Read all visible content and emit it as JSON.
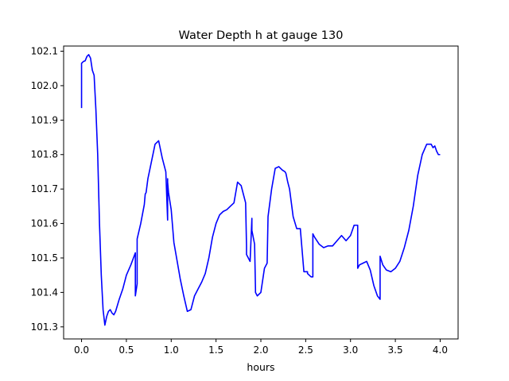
{
  "chart_data": {
    "type": "line",
    "title": "Water Depth h at gauge 130",
    "xlabel": "hours",
    "ylabel": "",
    "xlim": [
      -0.2,
      4.2
    ],
    "ylim": [
      101.265,
      102.115
    ],
    "x_ticks": [
      0.0,
      0.5,
      1.0,
      1.5,
      2.0,
      2.5,
      3.0,
      3.5,
      4.0
    ],
    "x_tick_labels": [
      "0.0",
      "0.5",
      "1.0",
      "1.5",
      "2.0",
      "2.5",
      "3.0",
      "3.5",
      "4.0"
    ],
    "y_ticks": [
      101.3,
      101.4,
      101.5,
      101.6,
      101.7,
      101.8,
      101.9,
      102.0,
      102.1
    ],
    "y_tick_labels": [
      "101.3",
      "101.4",
      "101.5",
      "101.6",
      "101.7",
      "101.8",
      "101.9",
      "102.0",
      "102.1"
    ],
    "grid": false,
    "series": [
      {
        "color": "#0000ff",
        "x": [
          0.0,
          0.0,
          0.02,
          0.04,
          0.06,
          0.08,
          0.1,
          0.12,
          0.14,
          0.16,
          0.18,
          0.2,
          0.22,
          0.24,
          0.26,
          0.28,
          0.3,
          0.32,
          0.34,
          0.36,
          0.38,
          0.42,
          0.46,
          0.5,
          0.55,
          0.6,
          0.6,
          0.62,
          0.62,
          0.66,
          0.7,
          0.71,
          0.72,
          0.74,
          0.76,
          0.78,
          0.82,
          0.86,
          0.9,
          0.94,
          0.96,
          0.96,
          0.96,
          0.97,
          1.0,
          1.03,
          1.06,
          1.1,
          1.14,
          1.18,
          1.22,
          1.26,
          1.3,
          1.34,
          1.38,
          1.42,
          1.46,
          1.5,
          1.54,
          1.58,
          1.62,
          1.66,
          1.7,
          1.72,
          1.74,
          1.76,
          1.78,
          1.8,
          1.83,
          1.84,
          1.84,
          1.88,
          1.9,
          1.9,
          1.93,
          1.94,
          1.94,
          1.96,
          2.0,
          2.04,
          2.07,
          2.08,
          2.12,
          2.16,
          2.2,
          2.24,
          2.27,
          2.28,
          2.3,
          2.32,
          2.34,
          2.36,
          2.4,
          2.44,
          2.48,
          2.52,
          2.52,
          2.56,
          2.58,
          2.58,
          2.6,
          2.65,
          2.7,
          2.75,
          2.8,
          2.85,
          2.9,
          2.95,
          3.0,
          3.04,
          3.06,
          3.08,
          3.08,
          3.1,
          3.14,
          3.18,
          3.22,
          3.26,
          3.3,
          3.33,
          3.33,
          3.36,
          3.4,
          3.45,
          3.5,
          3.55,
          3.6,
          3.65,
          3.7,
          3.75,
          3.8,
          3.85,
          3.9,
          3.92,
          3.94,
          3.96,
          3.98,
          4.0
        ],
        "y": [
          101.935,
          102.065,
          102.07,
          102.072,
          102.085,
          102.09,
          102.08,
          102.045,
          102.03,
          101.93,
          101.8,
          101.6,
          101.45,
          101.35,
          101.305,
          101.33,
          101.345,
          101.35,
          101.34,
          101.335,
          101.345,
          101.38,
          101.41,
          101.45,
          101.48,
          101.515,
          101.39,
          101.425,
          101.555,
          101.6,
          101.655,
          101.685,
          101.69,
          101.73,
          101.755,
          101.78,
          101.83,
          101.84,
          101.79,
          101.75,
          101.61,
          101.73,
          101.72,
          101.69,
          101.64,
          101.545,
          101.5,
          101.44,
          101.39,
          101.345,
          101.35,
          101.39,
          101.41,
          101.43,
          101.455,
          101.5,
          101.56,
          101.6,
          101.625,
          101.635,
          101.64,
          101.65,
          101.66,
          101.69,
          101.72,
          101.715,
          101.71,
          101.69,
          101.66,
          101.535,
          101.51,
          101.49,
          101.615,
          101.58,
          101.54,
          101.41,
          101.4,
          101.39,
          101.4,
          101.47,
          101.485,
          101.62,
          101.7,
          101.76,
          101.765,
          101.755,
          101.75,
          101.745,
          101.72,
          101.7,
          101.66,
          101.62,
          101.585,
          101.585,
          101.46,
          101.46,
          101.455,
          101.445,
          101.445,
          101.57,
          101.56,
          101.54,
          101.53,
          101.535,
          101.535,
          101.55,
          101.565,
          101.55,
          101.565,
          101.595,
          101.595,
          101.595,
          101.47,
          101.48,
          101.485,
          101.49,
          101.465,
          101.42,
          101.39,
          101.38,
          101.505,
          101.48,
          101.465,
          101.46,
          101.47,
          101.49,
          101.53,
          101.58,
          101.65,
          101.74,
          101.8,
          101.83,
          101.83,
          101.82,
          101.825,
          101.81,
          101.8,
          101.8
        ]
      }
    ]
  }
}
